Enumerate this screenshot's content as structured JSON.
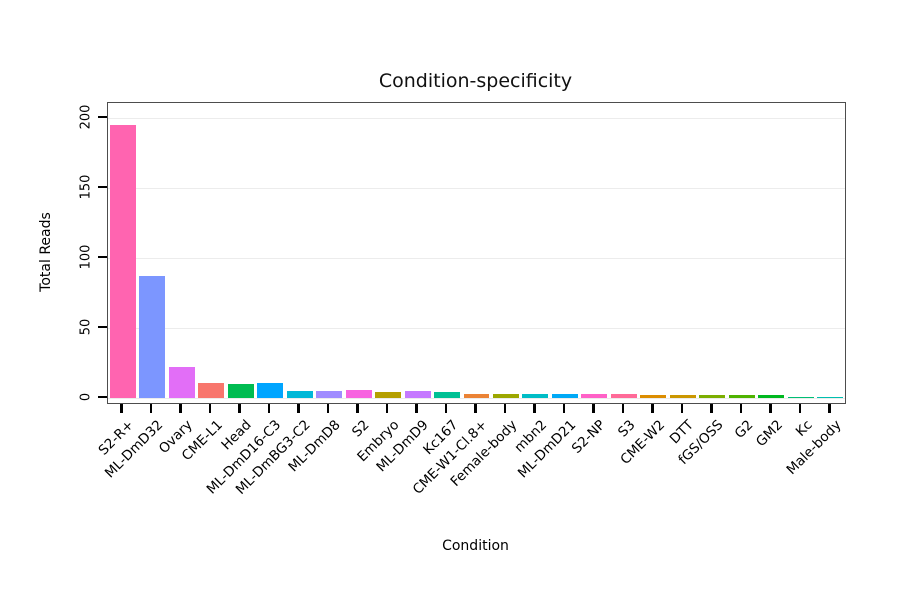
{
  "chart_data": {
    "type": "bar",
    "title": "Condition-specificity",
    "xlabel": "Condition",
    "ylabel": "Total Reads",
    "ylim": [
      0,
      210
    ],
    "yticks": [
      0,
      50,
      100,
      150,
      200
    ],
    "grid": "horizontal-major",
    "legend": "none",
    "categories": [
      "S2-R+",
      "ML-DmD32",
      "Ovary",
      "CME-L1",
      "Head",
      "ML-DmD16-C3",
      "ML-DmBG3-C2",
      "ML-DmD8",
      "S2",
      "Embryo",
      "ML-DmD9",
      "Kc167",
      "CME-W1-Cl.8+",
      "Female-body",
      "mbn2",
      "ML-DmD21",
      "S2-NP",
      "S3",
      "CME-W2",
      "DTT",
      "fGS/OSS",
      "G2",
      "GM2",
      "Kc",
      "Male-body"
    ],
    "values": [
      195,
      87,
      22,
      11,
      10,
      11,
      5,
      5,
      6,
      4,
      5,
      4,
      3,
      3,
      3,
      3,
      3,
      3,
      2,
      2,
      2,
      2,
      2,
      1,
      1
    ],
    "colors": [
      "#FF64B0",
      "#7C96FF",
      "#E26EF7",
      "#F8766D",
      "#00BC51",
      "#00A5FF",
      "#00B8D8",
      "#A08CFF",
      "#F763E0",
      "#B59F00",
      "#C579FF",
      "#00C094",
      "#EB8335",
      "#9CA700",
      "#00BDC6",
      "#00A9F6",
      "#FF61C7",
      "#FF6A98",
      "#DC8D00",
      "#CB9700",
      "#7CAE00",
      "#4FB300",
      "#00B81F",
      "#00BE75",
      "#00BFAF"
    ],
    "panel_border_color": "#4d4d4d",
    "gridline_color": "#ececec",
    "background_color": "#ffffff"
  }
}
